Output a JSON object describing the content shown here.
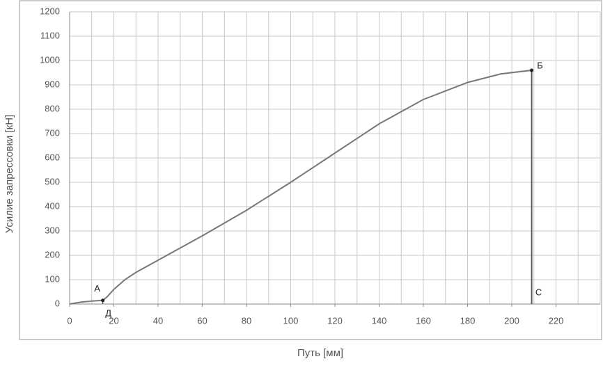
{
  "chart_data": {
    "type": "line",
    "xlabel": "Путь [мм]",
    "ylabel": "Усилие запрессовки [кН]",
    "xlim": [
      0,
      240
    ],
    "ylim": [
      0,
      1200
    ],
    "xticks": [
      0,
      20,
      40,
      60,
      80,
      100,
      120,
      140,
      160,
      180,
      200,
      220
    ],
    "yticks": [
      0,
      100,
      200,
      300,
      400,
      500,
      600,
      700,
      800,
      900,
      1000,
      1100,
      1200
    ],
    "xgrid": [
      10,
      20,
      30,
      40,
      50,
      60,
      70,
      80,
      90,
      100,
      110,
      120,
      130,
      140,
      150,
      160,
      170,
      180,
      190,
      200,
      210,
      220,
      230,
      240
    ],
    "grid": true,
    "series": [
      {
        "color": "#777777",
        "x": [
          0,
          5,
          10,
          15,
          17,
          20,
          25,
          30,
          40,
          60,
          80,
          100,
          120,
          140,
          160,
          180,
          195,
          209,
          209
        ],
        "values": [
          0,
          8,
          12,
          15,
          30,
          60,
          100,
          130,
          180,
          280,
          385,
          500,
          620,
          740,
          840,
          910,
          945,
          960,
          0
        ]
      }
    ],
    "annotations": [
      {
        "text": "А",
        "x": 15,
        "y": 15,
        "marker": true
      },
      {
        "text": "Д",
        "x": 15,
        "y": 0,
        "marker": false
      },
      {
        "text": "Б",
        "x": 209,
        "y": 960,
        "marker": true
      },
      {
        "text": "С",
        "x": 209,
        "y": 0,
        "marker": false
      }
    ]
  }
}
